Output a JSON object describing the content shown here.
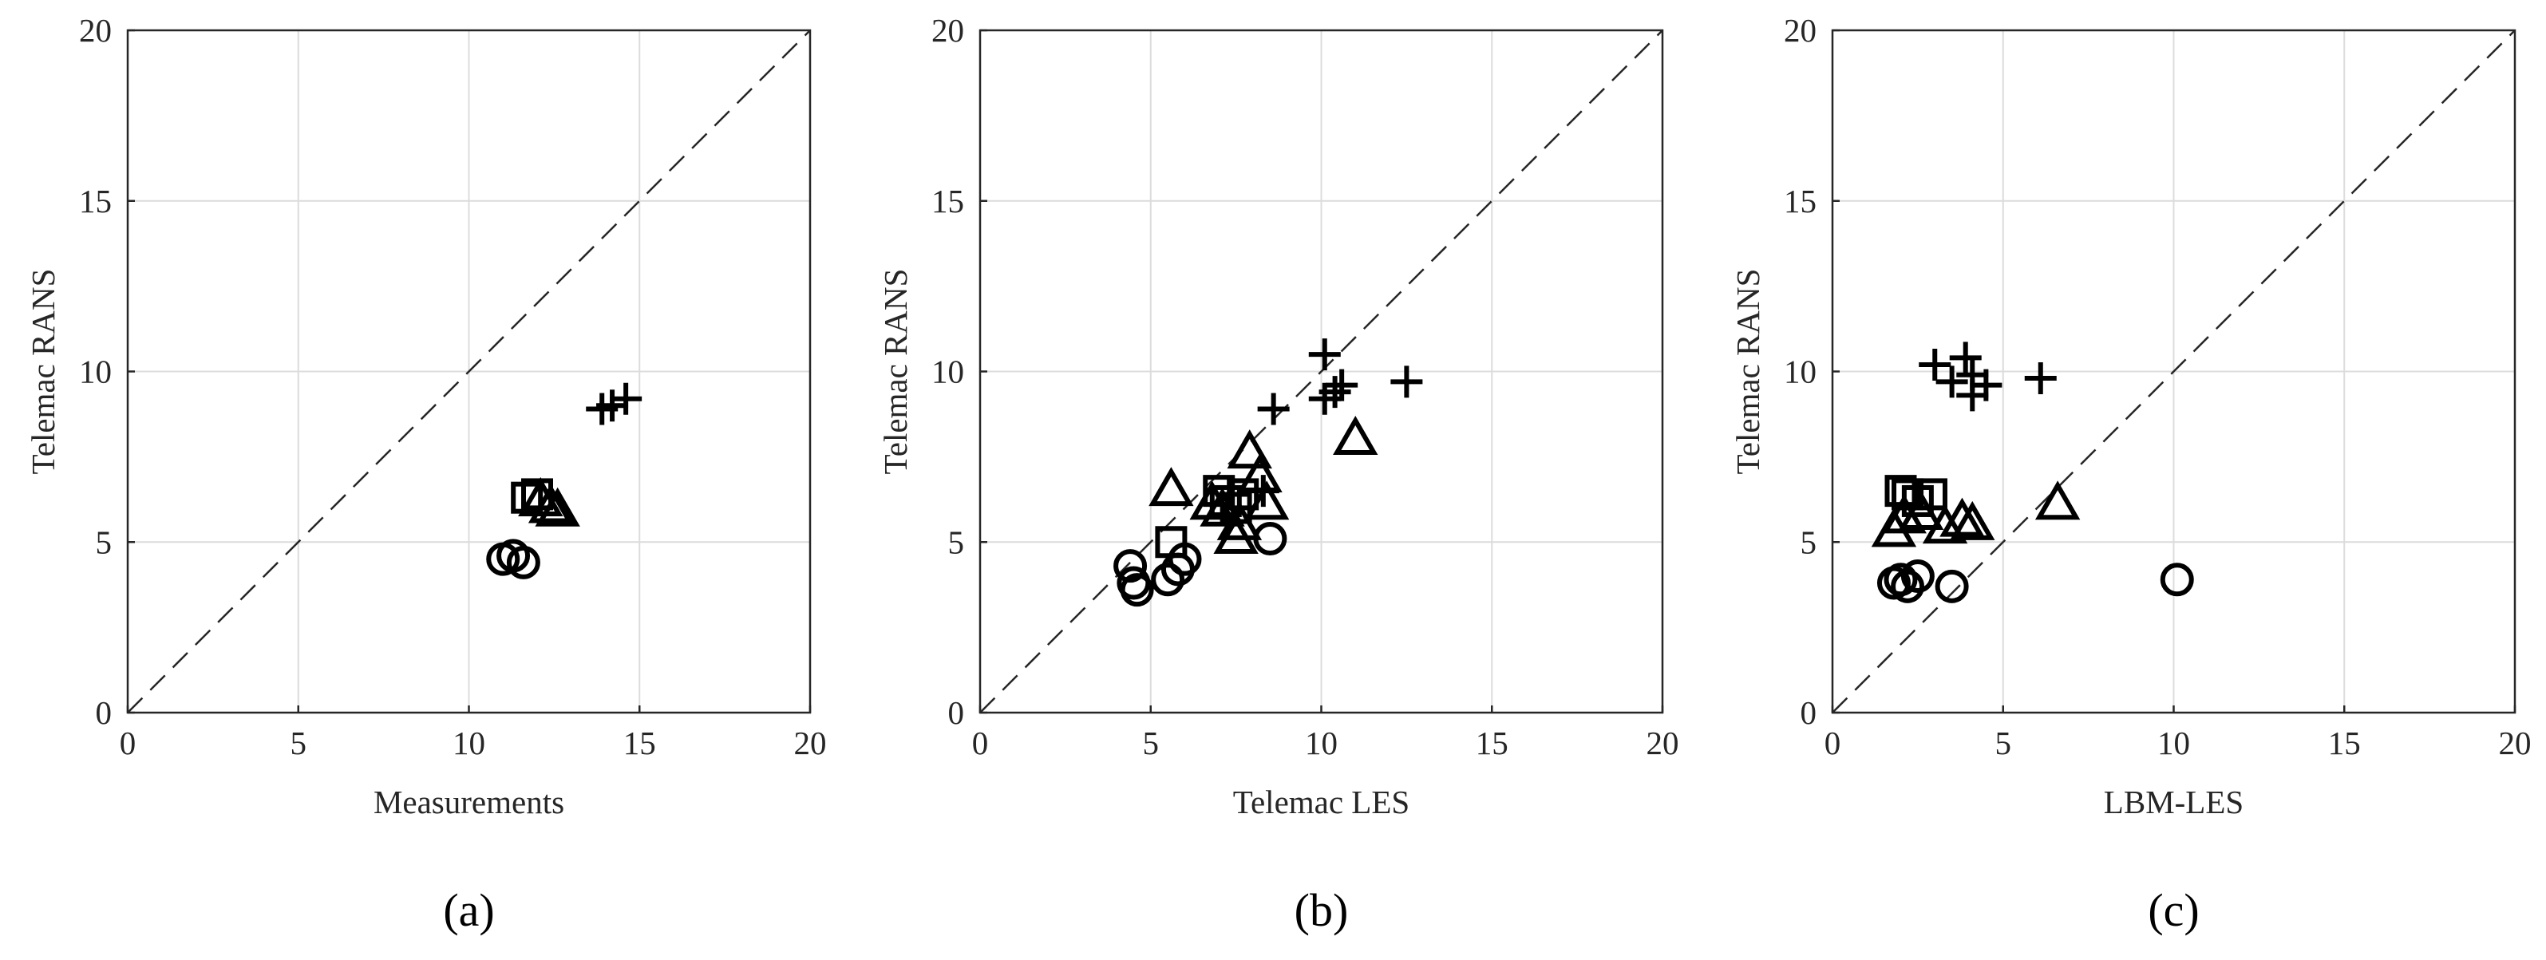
{
  "chart_data": [
    {
      "type": "scatter",
      "panel_label": "(a)",
      "xlabel": "Measurements",
      "ylabel": "Telemac RANS",
      "xlim": [
        0,
        20
      ],
      "ylim": [
        0,
        20
      ],
      "ticks": [
        "0",
        "5",
        "10",
        "15",
        "20"
      ],
      "grid": true,
      "reference_line": "y = x (dashed)",
      "series": [
        {
          "marker": "plus",
          "points": [
            [
              13.9,
              8.9
            ],
            [
              14.2,
              9.0
            ],
            [
              14.6,
              9.2
            ]
          ]
        },
        {
          "marker": "square",
          "points": [
            [
              11.7,
              6.3
            ],
            [
              12.0,
              6.4
            ]
          ]
        },
        {
          "marker": "triangle",
          "points": [
            [
              12.1,
              6.2
            ],
            [
              12.4,
              6.0
            ],
            [
              12.6,
              5.9
            ]
          ]
        },
        {
          "marker": "circle",
          "points": [
            [
              11.0,
              4.5
            ],
            [
              11.3,
              4.6
            ],
            [
              11.6,
              4.4
            ]
          ]
        }
      ]
    },
    {
      "type": "scatter",
      "panel_label": "(b)",
      "xlabel": "Telemac LES",
      "ylabel": "Telemac RANS",
      "xlim": [
        0,
        20
      ],
      "ylim": [
        0,
        20
      ],
      "ticks": [
        "0",
        "5",
        "10",
        "15",
        "20"
      ],
      "grid": true,
      "reference_line": "y = x (dashed)",
      "series": [
        {
          "marker": "plus",
          "points": [
            [
              10.1,
              10.5
            ],
            [
              10.1,
              9.2
            ],
            [
              10.4,
              9.4
            ],
            [
              10.6,
              9.6
            ],
            [
              12.5,
              9.7
            ],
            [
              8.6,
              8.9
            ],
            [
              8.3,
              6.5
            ]
          ]
        },
        {
          "marker": "square",
          "points": [
            [
              5.6,
              5.0
            ],
            [
              7.0,
              6.5
            ],
            [
              7.2,
              6.2
            ],
            [
              7.5,
              6.0
            ],
            [
              7.7,
              6.4
            ]
          ]
        },
        {
          "marker": "triangle",
          "points": [
            [
              5.6,
              6.5
            ],
            [
              6.8,
              6.1
            ],
            [
              7.1,
              5.9
            ],
            [
              7.6,
              5.5
            ],
            [
              7.9,
              7.6
            ],
            [
              8.2,
              6.9
            ],
            [
              8.4,
              6.1
            ],
            [
              11.0,
              8.0
            ],
            [
              7.5,
              5.1
            ]
          ]
        },
        {
          "marker": "circle",
          "points": [
            [
              4.4,
              4.3
            ],
            [
              4.5,
              3.8
            ],
            [
              4.6,
              3.6
            ],
            [
              5.5,
              3.9
            ],
            [
              5.8,
              4.2
            ],
            [
              6.0,
              4.5
            ],
            [
              8.5,
              5.1
            ]
          ]
        }
      ]
    },
    {
      "type": "scatter",
      "panel_label": "(c)",
      "xlabel": "LBM-LES",
      "ylabel": "Telemac RANS",
      "xlim": [
        0,
        20
      ],
      "ylim": [
        0,
        20
      ],
      "ticks": [
        "0",
        "5",
        "10",
        "15",
        "20"
      ],
      "grid": true,
      "reference_line": "y = x (dashed)",
      "series": [
        {
          "marker": "plus",
          "points": [
            [
              3.0,
              10.2
            ],
            [
              3.5,
              9.7
            ],
            [
              3.9,
              10.4
            ],
            [
              4.1,
              9.9
            ],
            [
              4.1,
              9.3
            ],
            [
              4.5,
              9.6
            ],
            [
              6.1,
              9.8
            ]
          ]
        },
        {
          "marker": "square",
          "points": [
            [
              2.0,
              6.5
            ],
            [
              2.2,
              6.4
            ],
            [
              2.5,
              6.2
            ],
            [
              2.9,
              6.4
            ]
          ]
        },
        {
          "marker": "triangle",
          "points": [
            [
              1.8,
              5.3
            ],
            [
              2.1,
              5.7
            ],
            [
              2.6,
              5.8
            ],
            [
              3.3,
              5.4
            ],
            [
              3.8,
              5.6
            ],
            [
              4.1,
              5.5
            ],
            [
              6.6,
              6.1
            ]
          ]
        },
        {
          "marker": "circle",
          "points": [
            [
              1.8,
              3.8
            ],
            [
              2.0,
              3.9
            ],
            [
              2.2,
              3.7
            ],
            [
              2.5,
              4.0
            ],
            [
              3.5,
              3.7
            ],
            [
              10.1,
              3.9
            ]
          ]
        }
      ]
    }
  ]
}
